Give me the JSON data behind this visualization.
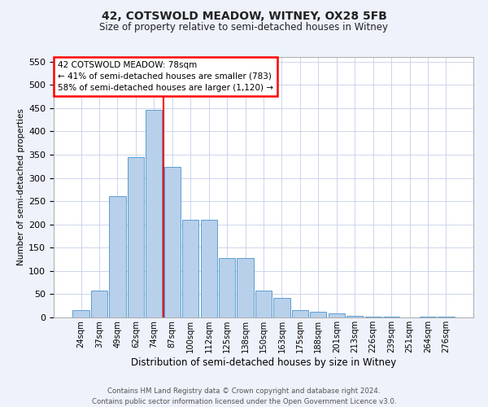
{
  "title_line1": "42, COTSWOLD MEADOW, WITNEY, OX28 5FB",
  "title_line2": "Size of property relative to semi-detached houses in Witney",
  "xlabel": "Distribution of semi-detached houses by size in Witney",
  "ylabel": "Number of semi-detached properties",
  "categories": [
    "24sqm",
    "37sqm",
    "49sqm",
    "62sqm",
    "74sqm",
    "87sqm",
    "100sqm",
    "112sqm",
    "125sqm",
    "138sqm",
    "150sqm",
    "163sqm",
    "175sqm",
    "188sqm",
    "201sqm",
    "213sqm",
    "226sqm",
    "239sqm",
    "251sqm",
    "264sqm",
    "276sqm"
  ],
  "values": [
    15,
    57,
    260,
    345,
    447,
    323,
    210,
    210,
    128,
    128,
    57,
    42,
    15,
    12,
    8,
    4,
    2,
    1,
    0,
    2,
    1
  ],
  "bar_color": "#b8d0ea",
  "bar_edge_color": "#5a9fd4",
  "vline_x": 4.5,
  "vline_color": "red",
  "annotation_text_line1": "42 COTSWOLD MEADOW: 78sqm",
  "annotation_text_line2": "← 41% of semi-detached houses are smaller (783)",
  "annotation_text_line3": "58% of semi-detached houses are larger (1,120) →",
  "ylim": [
    0,
    560
  ],
  "yticks": [
    0,
    50,
    100,
    150,
    200,
    250,
    300,
    350,
    400,
    450,
    500,
    550
  ],
  "footer_line1": "Contains HM Land Registry data © Crown copyright and database right 2024.",
  "footer_line2": "Contains public sector information licensed under the Open Government Licence v3.0.",
  "bg_color": "#eef2fb",
  "plot_bg_color": "#ffffff",
  "grid_color": "#c5cfe8"
}
